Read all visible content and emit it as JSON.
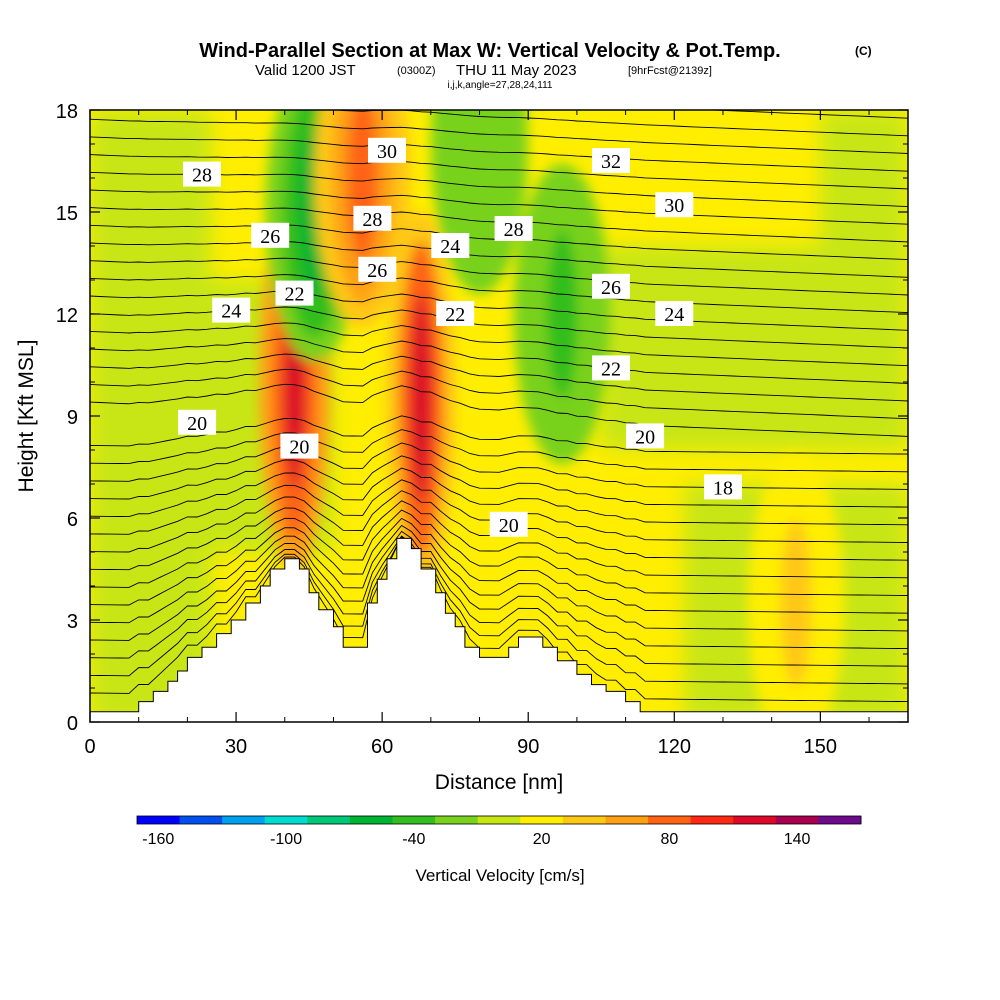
{
  "title": {
    "main": "Wind-Parallel Section at Max W: Vertical Velocity & Pot.Temp.",
    "copyright": "(C)",
    "valid_prefix": "Valid 1200 JST",
    "valid_utc": "(0300Z)",
    "valid_date": "THU 11 May 2023",
    "forecast": "[9hrFcst@2139z]",
    "indices": "i,j,k,angle=27,28,24,111"
  },
  "colorbar": {
    "label": "Vertical Velocity [cm/s]",
    "ticks": [
      "-160",
      "-100",
      "-40",
      "20",
      "80",
      "140"
    ],
    "colors": [
      "#0000ff",
      "#0050f0",
      "#00a0f0",
      "#00dcd2",
      "#00c878",
      "#00b432",
      "#32be1e",
      "#78d21e",
      "#c8e614",
      "#ffee00",
      "#ffc814",
      "#ffa014",
      "#ff6414",
      "#ff2814",
      "#dc0a28",
      "#aa0050",
      "#6e0a8c"
    ]
  },
  "chart_data": {
    "type": "heatmap",
    "xlabel": "Distance [nm]",
    "ylabel": "Height [Kft MSL]",
    "xlim": [
      0,
      168
    ],
    "ylim": [
      0,
      18
    ],
    "xticks": [
      "0",
      "30",
      "60",
      "90",
      "120",
      "150"
    ],
    "yticks": [
      "0",
      "3",
      "6",
      "9",
      "12",
      "15",
      "18"
    ],
    "terrain_kft": [
      [
        0,
        0.3
      ],
      [
        10,
        0.3
      ],
      [
        10,
        0.6
      ],
      [
        13,
        0.6
      ],
      [
        13,
        0.9
      ],
      [
        16,
        0.9
      ],
      [
        16,
        1.2
      ],
      [
        18,
        1.2
      ],
      [
        18,
        1.5
      ],
      [
        20,
        1.5
      ],
      [
        20,
        1.9
      ],
      [
        23,
        1.9
      ],
      [
        23,
        2.2
      ],
      [
        26,
        2.2
      ],
      [
        26,
        2.6
      ],
      [
        29,
        2.6
      ],
      [
        29,
        3.0
      ],
      [
        32,
        3.0
      ],
      [
        32,
        3.5
      ],
      [
        35,
        3.5
      ],
      [
        35,
        4.0
      ],
      [
        37,
        4.0
      ],
      [
        37,
        4.5
      ],
      [
        40,
        4.5
      ],
      [
        40,
        4.8
      ],
      [
        43,
        4.8
      ],
      [
        43,
        4.5
      ],
      [
        45,
        4.5
      ],
      [
        45,
        3.8
      ],
      [
        47,
        3.8
      ],
      [
        47,
        3.3
      ],
      [
        50,
        3.3
      ],
      [
        50,
        2.8
      ],
      [
        52,
        2.8
      ],
      [
        52,
        2.2
      ],
      [
        55,
        2.2
      ],
      [
        55,
        2.2
      ],
      [
        57,
        2.2
      ],
      [
        57,
        3.5
      ],
      [
        59,
        3.5
      ],
      [
        59,
        4.2
      ],
      [
        61,
        4.2
      ],
      [
        61,
        4.8
      ],
      [
        63,
        4.8
      ],
      [
        63,
        5.4
      ],
      [
        66,
        5.4
      ],
      [
        66,
        5.1
      ],
      [
        68,
        5.1
      ],
      [
        68,
        4.5
      ],
      [
        71,
        4.5
      ],
      [
        71,
        3.8
      ],
      [
        73,
        3.8
      ],
      [
        73,
        3.2
      ],
      [
        75,
        3.2
      ],
      [
        75,
        2.8
      ],
      [
        77,
        2.8
      ],
      [
        77,
        2.2
      ],
      [
        80,
        2.2
      ],
      [
        80,
        1.9
      ],
      [
        86,
        1.9
      ],
      [
        86,
        2.2
      ],
      [
        88,
        2.2
      ],
      [
        88,
        2.5
      ],
      [
        93,
        2.5
      ],
      [
        93,
        2.2
      ],
      [
        96,
        2.2
      ],
      [
        96,
        1.8
      ],
      [
        100,
        1.8
      ],
      [
        100,
        1.4
      ],
      [
        103,
        1.4
      ],
      [
        103,
        1.1
      ],
      [
        106,
        1.1
      ],
      [
        106,
        0.9
      ],
      [
        110,
        0.9
      ],
      [
        110,
        0.6
      ],
      [
        113,
        0.6
      ],
      [
        113,
        0.3
      ],
      [
        168,
        0.3
      ]
    ],
    "velocity_features_cms": [
      {
        "x": 42,
        "z": 10,
        "w": 120
      },
      {
        "x": 68,
        "z": 9.5,
        "w": 110
      },
      {
        "x": 46,
        "z": 15,
        "w": -60
      },
      {
        "x": 56,
        "z": 16,
        "w": 80
      },
      {
        "x": 80,
        "z": 17,
        "w": -30
      },
      {
        "x": 97,
        "z": 12,
        "w": -40
      },
      {
        "x": 145,
        "z": 3.5,
        "w": 40
      }
    ],
    "theta_contour_labels": [
      {
        "x": 23,
        "z": 16.1,
        "label": "28"
      },
      {
        "x": 37,
        "z": 14.3,
        "label": "26"
      },
      {
        "x": 42,
        "z": 12.6,
        "label": "22"
      },
      {
        "x": 29,
        "z": 12.1,
        "label": "24"
      },
      {
        "x": 22,
        "z": 8.8,
        "label": "20"
      },
      {
        "x": 43,
        "z": 8.1,
        "label": "20"
      },
      {
        "x": 61,
        "z": 16.8,
        "label": "30"
      },
      {
        "x": 58,
        "z": 14.8,
        "label": "28"
      },
      {
        "x": 59,
        "z": 13.3,
        "label": "26"
      },
      {
        "x": 74,
        "z": 14.0,
        "label": "24"
      },
      {
        "x": 75,
        "z": 12.0,
        "label": "22"
      },
      {
        "x": 86,
        "z": 5.8,
        "label": "20"
      },
      {
        "x": 107,
        "z": 16.5,
        "label": "32"
      },
      {
        "x": 87,
        "z": 14.5,
        "label": "28"
      },
      {
        "x": 120,
        "z": 15.2,
        "label": "30"
      },
      {
        "x": 107,
        "z": 12.8,
        "label": "26"
      },
      {
        "x": 120,
        "z": 12.0,
        "label": "24"
      },
      {
        "x": 107,
        "z": 10.4,
        "label": "22"
      },
      {
        "x": 114,
        "z": 8.4,
        "label": "20"
      },
      {
        "x": 130,
        "z": 6.9,
        "label": "18"
      }
    ]
  }
}
